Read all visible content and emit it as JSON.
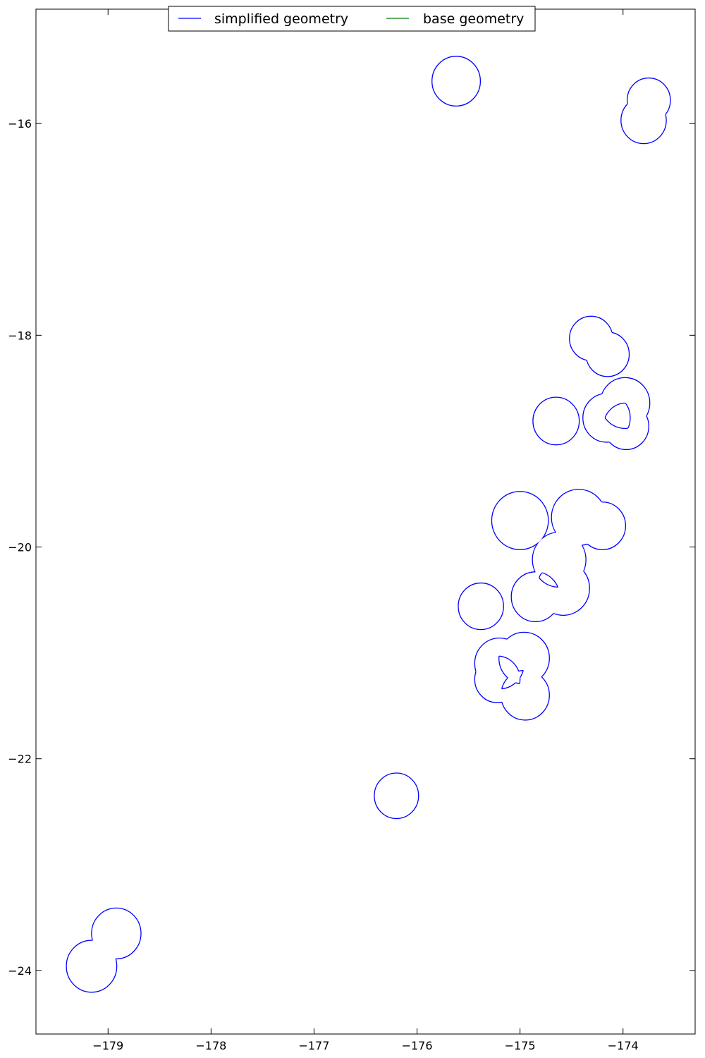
{
  "chart_data": {
    "type": "line",
    "title": "",
    "xlabel": "",
    "ylabel": "",
    "xlim": [
      -179.7,
      -173.3
    ],
    "ylim": [
      -24.6,
      -14.92
    ],
    "grid": false,
    "legend_placement": "top-center",
    "x_ticks": [
      {
        "value": -179,
        "label": "−179"
      },
      {
        "value": -178,
        "label": "−178"
      },
      {
        "value": -177,
        "label": "−177"
      },
      {
        "value": -176,
        "label": "−176"
      },
      {
        "value": -175,
        "label": "−175"
      },
      {
        "value": -174,
        "label": "−174"
      }
    ],
    "y_ticks": [
      {
        "value": -16,
        "label": "−16"
      },
      {
        "value": -18,
        "label": "−18"
      },
      {
        "value": -20,
        "label": "−20"
      },
      {
        "value": -22,
        "label": "−22"
      },
      {
        "value": -24,
        "label": "−24"
      }
    ],
    "series": [
      {
        "name": "simplified geometry",
        "color": "#0000ff",
        "circle_groups": [
          [
            {
              "cx": -175.62,
              "cy": -15.6,
              "r": 0.235
            }
          ],
          [
            {
              "cx": -173.75,
              "cy": -15.78,
              "r": 0.21
            },
            {
              "cx": -173.8,
              "cy": -15.97,
              "r": 0.22
            }
          ],
          [
            {
              "cx": -174.31,
              "cy": -18.03,
              "r": 0.21
            },
            {
              "cx": -174.15,
              "cy": -18.18,
              "r": 0.21
            }
          ],
          [
            {
              "cx": -174.65,
              "cy": -18.81,
              "r": 0.225
            }
          ],
          [
            {
              "cx": -173.98,
              "cy": -18.64,
              "r": 0.24
            },
            {
              "cx": -174.16,
              "cy": -18.78,
              "r": 0.23
            },
            {
              "cx": -173.97,
              "cy": -18.86,
              "r": 0.22
            }
          ],
          [
            {
              "cx": -175.0,
              "cy": -19.75,
              "r": 0.275
            },
            {
              "cx": -174.43,
              "cy": -19.72,
              "r": 0.265
            },
            {
              "cx": -174.2,
              "cy": -19.8,
              "r": 0.225
            },
            {
              "cx": -174.62,
              "cy": -20.12,
              "r": 0.26
            },
            {
              "cx": -174.58,
              "cy": -20.39,
              "r": 0.255
            },
            {
              "cx": -174.85,
              "cy": -20.47,
              "r": 0.235
            }
          ],
          [
            {
              "cx": -175.38,
              "cy": -20.56,
              "r": 0.22
            }
          ],
          [
            {
              "cx": -175.2,
              "cy": -21.1,
              "r": 0.24
            },
            {
              "cx": -174.96,
              "cy": -21.05,
              "r": 0.245
            },
            {
              "cx": -174.95,
              "cy": -21.4,
              "r": 0.235
            },
            {
              "cx": -175.22,
              "cy": -21.25,
              "r": 0.22
            }
          ],
          [
            {
              "cx": -176.2,
              "cy": -22.35,
              "r": 0.215
            }
          ],
          [
            {
              "cx": -178.92,
              "cy": -23.65,
              "r": 0.24
            },
            {
              "cx": -179.16,
              "cy": -23.96,
              "r": 0.245
            }
          ]
        ]
      },
      {
        "name": "base geometry",
        "color": "#008000",
        "circle_groups": []
      }
    ]
  }
}
